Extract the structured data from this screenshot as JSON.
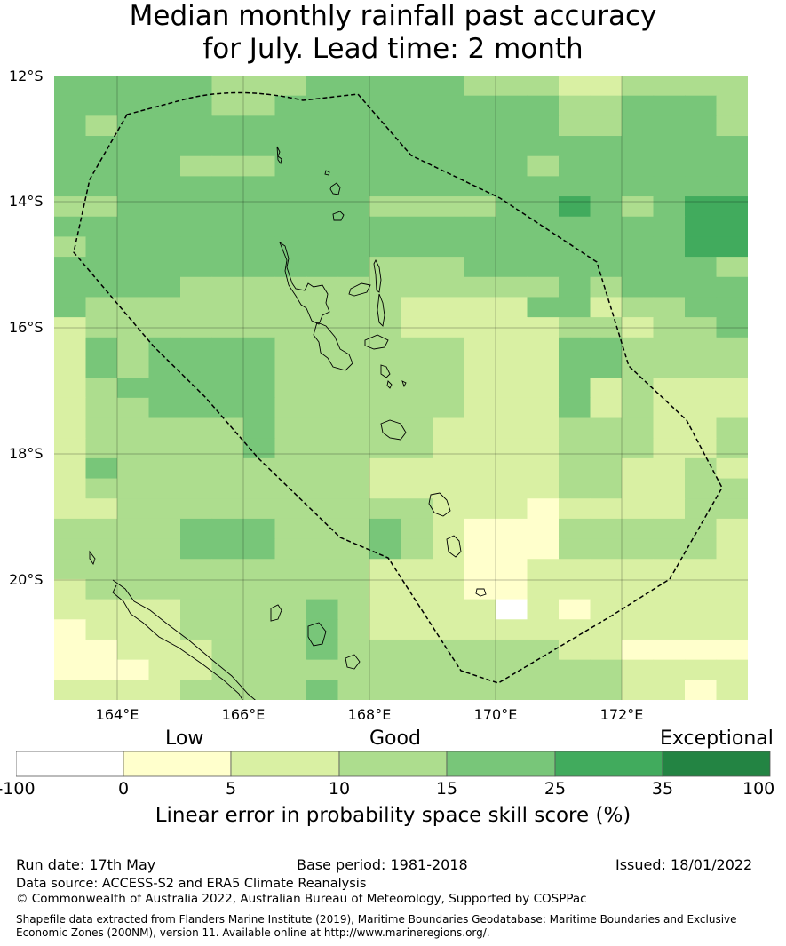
{
  "title_line1": "Median monthly rainfall past accuracy",
  "title_line2": "for July. Lead time: 2 month",
  "axes": {
    "lat_labels": [
      "12°S",
      "14°S",
      "16°S",
      "18°S",
      "20°S"
    ],
    "lon_labels": [
      "164°E",
      "166°E",
      "168°E",
      "170°E",
      "172°E"
    ]
  },
  "colors": {
    "c0": "#ffffff",
    "c1": "#ffffcc",
    "c2": "#d9f0a3",
    "c3": "#addd8e",
    "c4": "#78c679",
    "c5": "#41ab5d",
    "c6": "#238443"
  },
  "grid": {
    "lon_start": 163.0,
    "lon_end": 174.0,
    "lat_top": -12.0,
    "lat_bottom": -21.9,
    "cell_deg": 0.833,
    "rows": [
      "4444433344444333223333",
      "4444433444444444334443",
      "4344444444444444334443",
      "4444444444444444444444",
      "4444333444444443444444",
      "4444444444444444444444",
      "3344444444333344543455",
      "4444444444444444444455",
      "3444444444444444444455",
      "4444444444333444444443",
      "4444333333333333434444",
      "4333333333322224423344",
      "2333333333322222332334",
      "2434444333333222443333",
      "2434444333333222443333",
      "2344444333333222423222",
      "2334444333333222423222",
      "2333334333332222333223",
      "2333334333332222333223",
      "2433333333222222332232",
      "2333333333222222332233",
      "2233333333332221222233",
      "3333444333432111333332",
      "3333444333432111333332",
      "3333333333222112222222",
      "2333333333222112222222",
      "2222333343222202122222",
      "1222333343222222222222",
      "1122233343333333221111",
      "1112233333333333332222",
      "2222333343333333332212"
    ]
  },
  "colorbar": {
    "category_labels": [
      "Low",
      "Good",
      "Exceptional"
    ],
    "ticks": [
      "-100",
      "0",
      "5",
      "10",
      "15",
      "25",
      "35",
      "100"
    ],
    "title": "Linear error in probability space skill score (%)"
  },
  "footer": {
    "run_date": "Run date: 17th May",
    "base_period": "Base period: 1981-2018",
    "issued": "Issued: 18/01/2022",
    "data_source": "Data source: ACCESS-S2 and ERA5 Climate Reanalysis",
    "copyright": "© Commonwealth of Australia 2022, Australian Bureau of Meteorology, Supported by COSPPac",
    "shapefile_line1": "Shapefile data extracted from Flanders Marine Institute (2019), Maritime Boundaries Geodatabase: Maritime Boundaries and Exclusive",
    "shapefile_line2": "Economic Zones (200NM), version 11. Available online at http://www.marineregions.org/."
  }
}
